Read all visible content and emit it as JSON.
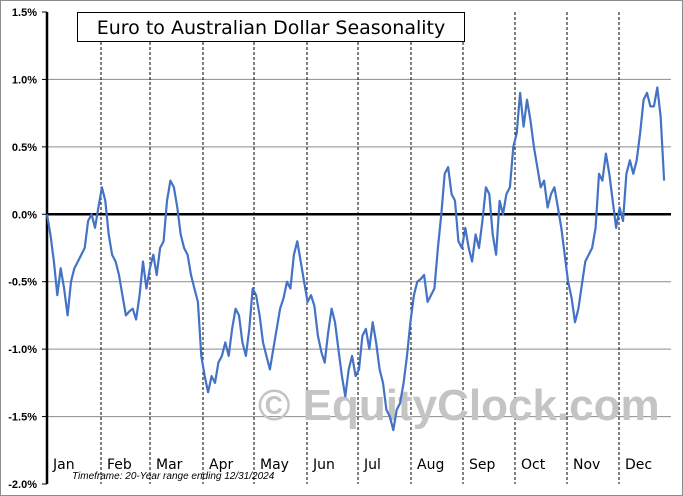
{
  "chart_data": {
    "type": "line",
    "title": "Euro to Australian Dollar Seasonality",
    "xlabel": "",
    "ylabel": "",
    "ylim": [
      -2.0,
      1.5
    ],
    "y_ticks": [
      "1.5%",
      "1.0%",
      "0.5%",
      "0.0%",
      "-0.5%",
      "-1.0%",
      "-1.5%",
      "-2.0%"
    ],
    "y_tick_values": [
      1.5,
      1.0,
      0.5,
      0.0,
      -0.5,
      -1.0,
      -1.5,
      -2.0
    ],
    "categories": [
      "Jan",
      "Feb",
      "Mar",
      "Apr",
      "May",
      "Jun",
      "Jul",
      "Aug",
      "Sep",
      "Oct",
      "Nov",
      "Dec"
    ],
    "grid": {
      "horizontal": true,
      "vertical_month_separators": true
    },
    "legend": "none",
    "annotations": [
      "Timeframe: 20-Year range ending 12/31/2024",
      "© EquityClock.com"
    ],
    "series": [
      {
        "name": "Euro to Australian Dollar Seasonality (cumulative %)",
        "color": "#4472c4",
        "x_day_of_year": [
          1,
          3,
          5,
          7,
          9,
          11,
          13,
          15,
          17,
          19,
          21,
          23,
          25,
          27,
          29,
          31,
          33,
          35,
          37,
          39,
          41,
          43,
          45,
          47,
          49,
          51,
          53,
          55,
          57,
          59,
          61,
          63,
          65,
          67,
          69,
          71,
          73,
          75,
          77,
          79,
          81,
          83,
          85,
          87,
          89,
          91,
          93,
          95,
          97,
          99,
          101,
          103,
          105,
          107,
          109,
          111,
          113,
          115,
          117,
          119,
          121,
          123,
          125,
          127,
          129,
          131,
          133,
          135,
          137,
          139,
          141,
          143,
          145,
          147,
          149,
          151,
          153,
          155,
          157,
          159,
          161,
          163,
          165,
          167,
          169,
          171,
          173,
          175,
          177,
          179,
          181,
          183,
          185,
          187,
          189,
          191,
          193,
          195,
          197,
          199,
          201,
          203,
          205,
          207,
          209,
          211,
          213,
          215,
          217,
          219,
          221,
          223,
          225,
          227,
          229,
          231,
          233,
          235,
          237,
          239,
          241,
          243,
          245,
          247,
          249,
          251,
          253,
          255,
          257,
          259,
          261,
          263,
          265,
          267,
          269,
          271,
          273,
          275,
          277,
          279,
          281,
          283,
          285,
          287,
          289,
          291,
          293,
          295,
          297,
          299,
          301,
          303,
          305,
          307,
          309,
          311,
          313,
          315,
          317,
          319,
          321,
          323,
          325,
          327,
          329,
          331,
          333,
          335,
          337,
          339,
          341,
          343,
          345,
          347,
          349,
          351,
          353,
          355,
          357,
          359,
          361,
          363,
          365
        ],
        "values": [
          0.0,
          -0.15,
          -0.35,
          -0.6,
          -0.4,
          -0.55,
          -0.75,
          -0.5,
          -0.4,
          -0.35,
          -0.3,
          -0.25,
          -0.05,
          0.0,
          -0.1,
          0.05,
          0.2,
          0.1,
          -0.15,
          -0.3,
          -0.35,
          -0.45,
          -0.6,
          -0.75,
          -0.72,
          -0.7,
          -0.78,
          -0.6,
          -0.35,
          -0.55,
          -0.4,
          -0.3,
          -0.45,
          -0.25,
          -0.2,
          0.1,
          0.25,
          0.2,
          0.05,
          -0.15,
          -0.25,
          -0.3,
          -0.45,
          -0.55,
          -0.65,
          -1.05,
          -1.2,
          -1.32,
          -1.2,
          -1.25,
          -1.1,
          -1.05,
          -0.95,
          -1.05,
          -0.85,
          -0.7,
          -0.75,
          -0.95,
          -1.05,
          -0.85,
          -0.55,
          -0.6,
          -0.75,
          -0.95,
          -1.05,
          -1.15,
          -1.0,
          -0.85,
          -0.7,
          -0.62,
          -0.5,
          -0.55,
          -0.3,
          -0.2,
          -0.35,
          -0.5,
          -0.65,
          -0.6,
          -0.68,
          -0.9,
          -1.02,
          -1.1,
          -0.88,
          -0.7,
          -0.8,
          -1.0,
          -1.2,
          -1.35,
          -1.15,
          -1.05,
          -1.2,
          -1.15,
          -0.9,
          -0.85,
          -1.0,
          -0.8,
          -0.95,
          -1.15,
          -1.25,
          -1.45,
          -1.5,
          -1.6,
          -1.45,
          -1.4,
          -1.25,
          -1.05,
          -0.8,
          -0.6,
          -0.5,
          -0.48,
          -0.45,
          -0.65,
          -0.6,
          -0.55,
          -0.25,
          0.0,
          0.3,
          0.35,
          0.15,
          0.1,
          -0.2,
          -0.25,
          -0.1,
          -0.25,
          -0.35,
          -0.15,
          -0.25,
          -0.05,
          0.2,
          0.15,
          -0.15,
          -0.3,
          0.1,
          0.0,
          0.15,
          0.2,
          0.5,
          0.6,
          0.9,
          0.65,
          0.85,
          0.7,
          0.5,
          0.35,
          0.2,
          0.25,
          0.05,
          0.15,
          0.2,
          0.05,
          -0.1,
          -0.3,
          -0.5,
          -0.62,
          -0.8,
          -0.7,
          -0.52,
          -0.35,
          -0.3,
          -0.25,
          -0.1,
          0.3,
          0.25,
          0.45,
          0.3,
          0.1,
          -0.1,
          0.05,
          -0.05,
          0.3,
          0.4,
          0.3,
          0.4,
          0.6,
          0.85,
          0.9,
          0.8,
          0.8,
          0.94,
          0.72,
          0.25
        ]
      }
    ]
  },
  "watermark": "© EquityClock.com",
  "timeframe_note": "Timeframe: 20-Year range ending 12/31/2024"
}
